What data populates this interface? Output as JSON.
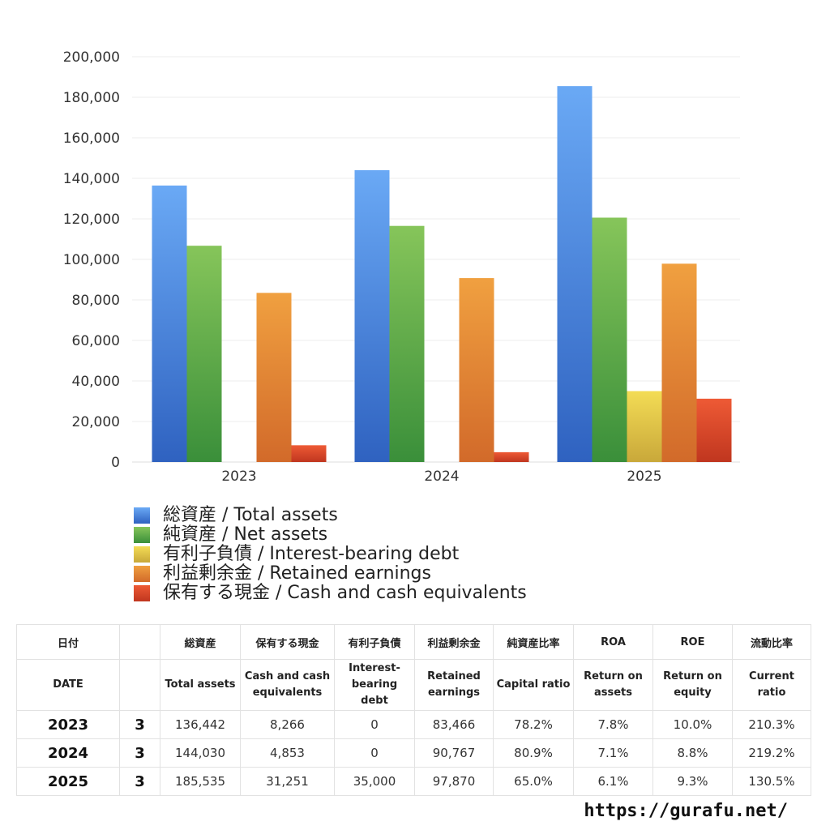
{
  "chart_data": {
    "type": "bar",
    "categories": [
      "2023",
      "2024",
      "2025"
    ],
    "series": [
      {
        "name": "総資産 / Total assets",
        "values": [
          136442,
          144030,
          185535
        ],
        "color_top": "#6aa9f5",
        "color_bottom": "#2f62c0"
      },
      {
        "name": "純資産 / Net assets",
        "values": [
          106731,
          116520,
          120598
        ],
        "color_top": "#86c55a",
        "color_bottom": "#3a8f3a"
      },
      {
        "name": "有利子負債 / Interest-bearing debt",
        "values": [
          0,
          0,
          35000
        ],
        "color_top": "#f3dc55",
        "color_bottom": "#c9a83a"
      },
      {
        "name": "利益剰余金 / Retained earnings",
        "values": [
          83466,
          90767,
          97870
        ],
        "color_top": "#f0a040",
        "color_bottom": "#d26a2a"
      },
      {
        "name": "保有する現金 /  Cash and cash equivalents",
        "values": [
          8266,
          4853,
          31251
        ],
        "color_top": "#ee5a35",
        "color_bottom": "#c0361f"
      }
    ],
    "ylim": [
      0,
      200000
    ],
    "yticks": [
      "0",
      "20,000",
      "40,000",
      "60,000",
      "80,000",
      "100,000",
      "120,000",
      "140,000",
      "160,000",
      "180,000",
      "200,000"
    ],
    "grid": true,
    "legend_position": "bottom-left"
  },
  "table": {
    "header_jp": [
      "日付",
      "",
      "総資産",
      "保有する現金",
      "有利子負債",
      "利益剰余金",
      "純資産比率",
      "ROA",
      "ROE",
      "流動比率"
    ],
    "header_en": [
      "DATE",
      "",
      "Total assets",
      "Cash and cash equivalents",
      "Interest-bearing debt",
      "Retained earnings",
      "Capital ratio",
      "Return on assets",
      "Return on equity",
      "Current ratio"
    ],
    "rows": [
      [
        "2023",
        "3",
        "136,442",
        "8,266",
        "0",
        "83,466",
        "78.2%",
        "7.8%",
        "10.0%",
        "210.3%"
      ],
      [
        "2024",
        "3",
        "144,030",
        "4,853",
        "0",
        "90,767",
        "80.9%",
        "7.1%",
        "8.8%",
        "219.2%"
      ],
      [
        "2025",
        "3",
        "185,535",
        "31,251",
        "35,000",
        "97,870",
        "65.0%",
        "6.1%",
        "9.3%",
        "130.5%"
      ]
    ]
  },
  "footer": {
    "url": "https://gurafu.net/"
  }
}
